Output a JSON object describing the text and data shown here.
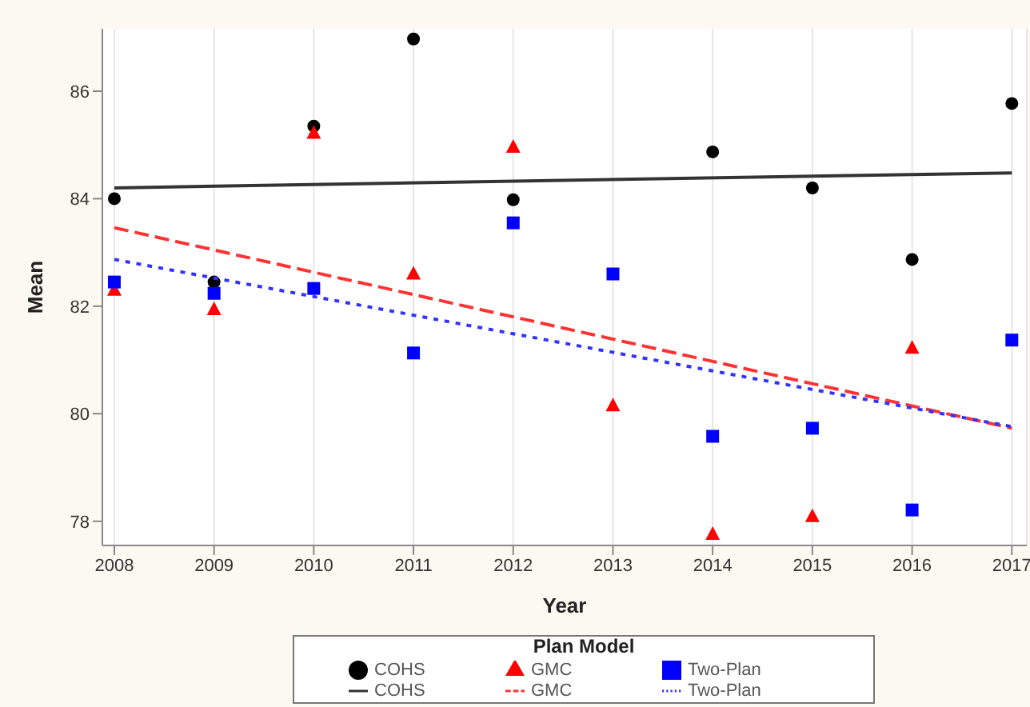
{
  "chart_data": {
    "type": "scatter",
    "xlabel": "Year",
    "ylabel": "Mean",
    "legend_title": "Plan Model",
    "legend": "bottom",
    "grid": "x",
    "x": [
      2008,
      2009,
      2010,
      2011,
      2012,
      2013,
      2014,
      2015,
      2016,
      2017
    ],
    "xlim": [
      2007.88,
      2017.15
    ],
    "xticks": [
      2008,
      2009,
      2010,
      2011,
      2012,
      2013,
      2014,
      2015,
      2016,
      2017
    ],
    "ylim": [
      77.55,
      87.16
    ],
    "yticks": [
      78,
      80,
      82,
      84,
      86
    ],
    "series": [
      {
        "name": "COHS",
        "marker": "circle",
        "color": "#000000",
        "values": [
          84.0,
          82.45,
          85.35,
          86.97,
          83.98,
          null,
          84.87,
          84.2,
          82.87,
          85.77
        ]
      },
      {
        "name": "GMC",
        "marker": "triangle",
        "color": "#ff0000",
        "values": [
          82.3,
          81.94,
          85.22,
          82.6,
          84.96,
          80.15,
          77.76,
          78.09,
          81.22,
          null
        ]
      },
      {
        "name": "Two-Plan",
        "marker": "square",
        "color": "#0000ff",
        "values": [
          82.45,
          82.24,
          82.33,
          81.13,
          83.55,
          82.6,
          79.58,
          79.73,
          78.21,
          81.37
        ]
      },
      {
        "name": "COHS",
        "type": "line",
        "line_style": "solid",
        "color": "#333333",
        "values": [
          84.2,
          null,
          null,
          null,
          null,
          null,
          null,
          null,
          null,
          84.48
        ]
      },
      {
        "name": "GMC",
        "type": "line",
        "line_style": "dashed",
        "color": "#ff3333",
        "values": [
          83.46,
          null,
          null,
          null,
          null,
          null,
          null,
          null,
          null,
          79.73
        ]
      },
      {
        "name": "Two-Plan",
        "type": "line",
        "line_style": "dotted",
        "color": "#3333ff",
        "values": [
          82.87,
          null,
          null,
          null,
          null,
          null,
          null,
          null,
          null,
          79.76
        ]
      }
    ]
  }
}
